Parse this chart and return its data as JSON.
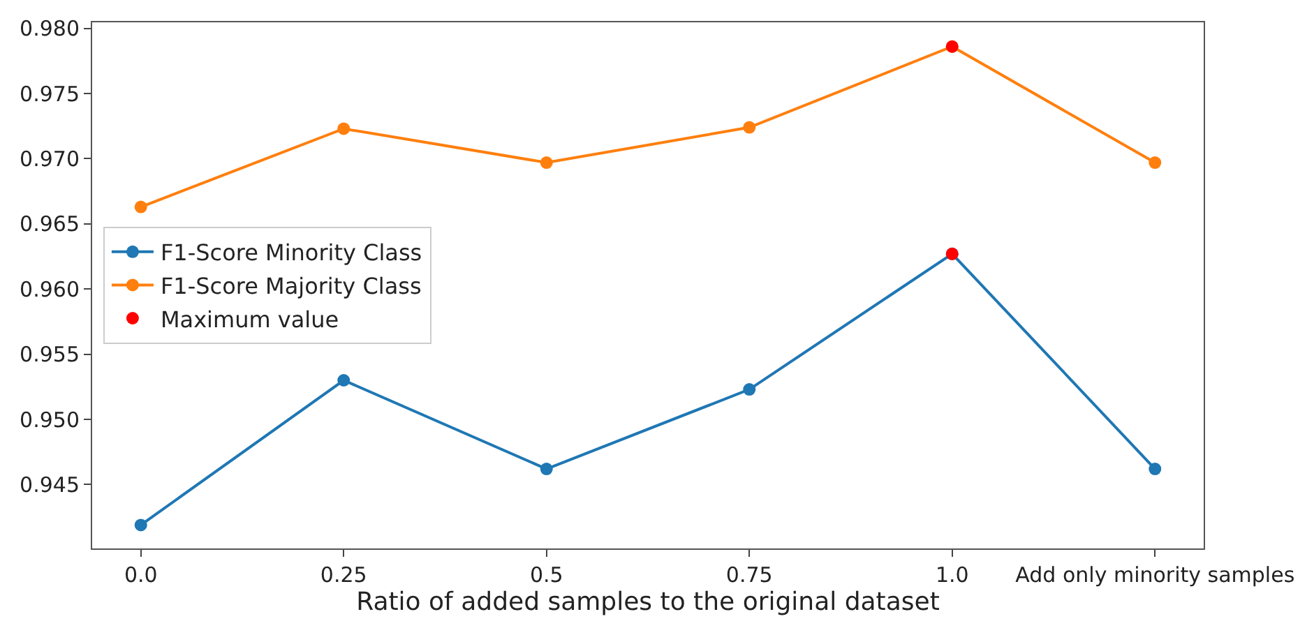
{
  "chart_data": {
    "type": "line",
    "xlabel": "Ratio of added samples to the original dataset",
    "categories": [
      "0.0",
      "0.25",
      "0.5",
      "0.75",
      "1.0",
      "Add only minority samples"
    ],
    "series": [
      {
        "name": "F1-Score Minority Class",
        "color": "#1f77b4",
        "values": [
          0.9419,
          0.953,
          0.9462,
          0.9523,
          0.9627,
          0.9462
        ]
      },
      {
        "name": "F1-Score Majority Class",
        "color": "#ff7f0e",
        "values": [
          0.9663,
          0.9723,
          0.9697,
          0.9724,
          0.9786,
          0.9697
        ]
      },
      {
        "name": "Maximum value",
        "type": "scatter",
        "color": "#ff0000",
        "x": [
          "1.0",
          "1.0"
        ],
        "values": [
          0.9627,
          0.9786
        ]
      }
    ],
    "ylim": [
      0.9401,
      0.98046
    ],
    "yticks": [
      {
        "value": 0.945,
        "label": "0.945"
      },
      {
        "value": 0.95,
        "label": "0.950"
      },
      {
        "value": 0.955,
        "label": "0.955"
      },
      {
        "value": 0.96,
        "label": "0.960"
      },
      {
        "value": 0.965,
        "label": "0.965"
      },
      {
        "value": 0.97,
        "label": "0.970"
      },
      {
        "value": 0.975,
        "label": "0.975"
      },
      {
        "value": 0.98,
        "label": "0.980"
      }
    ],
    "marker": "circle",
    "line_style": "solid",
    "legend": "left"
  }
}
